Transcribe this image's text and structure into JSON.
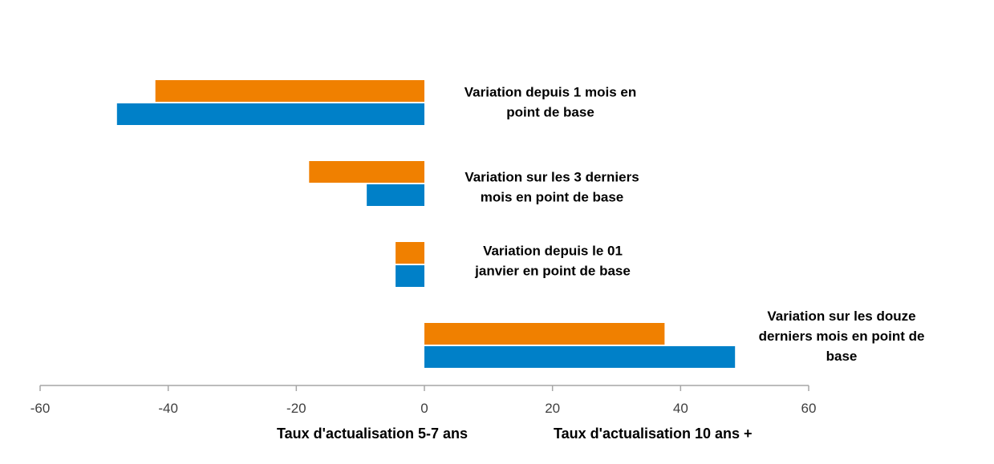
{
  "chart_data": {
    "type": "bar",
    "orientation": "horizontal",
    "categories": [
      [
        "Variation depuis 1 mois en",
        "point de base"
      ],
      [
        "Variation sur les 3 derniers",
        "mois en point de base"
      ],
      [
        "Variation depuis le 01",
        "janvier en point de base"
      ],
      [
        "Variation sur les douze",
        "derniers mois en point de",
        "base"
      ]
    ],
    "series": [
      {
        "name": "Taux d'actualisation 5-7 ans",
        "color": "#F08000",
        "values": [
          -42,
          -18,
          -4.5,
          37.5
        ]
      },
      {
        "name": "Taux d'actualisation 10 ans +",
        "color": "#0080C8",
        "values": [
          -48,
          -9,
          -4.5,
          48.5
        ]
      }
    ],
    "xlim": [
      -60,
      60
    ],
    "xticks": [
      "-60",
      "-40",
      "-20",
      "0",
      "20",
      "40",
      "60"
    ],
    "grid": false,
    "legend_position": "bottom"
  }
}
